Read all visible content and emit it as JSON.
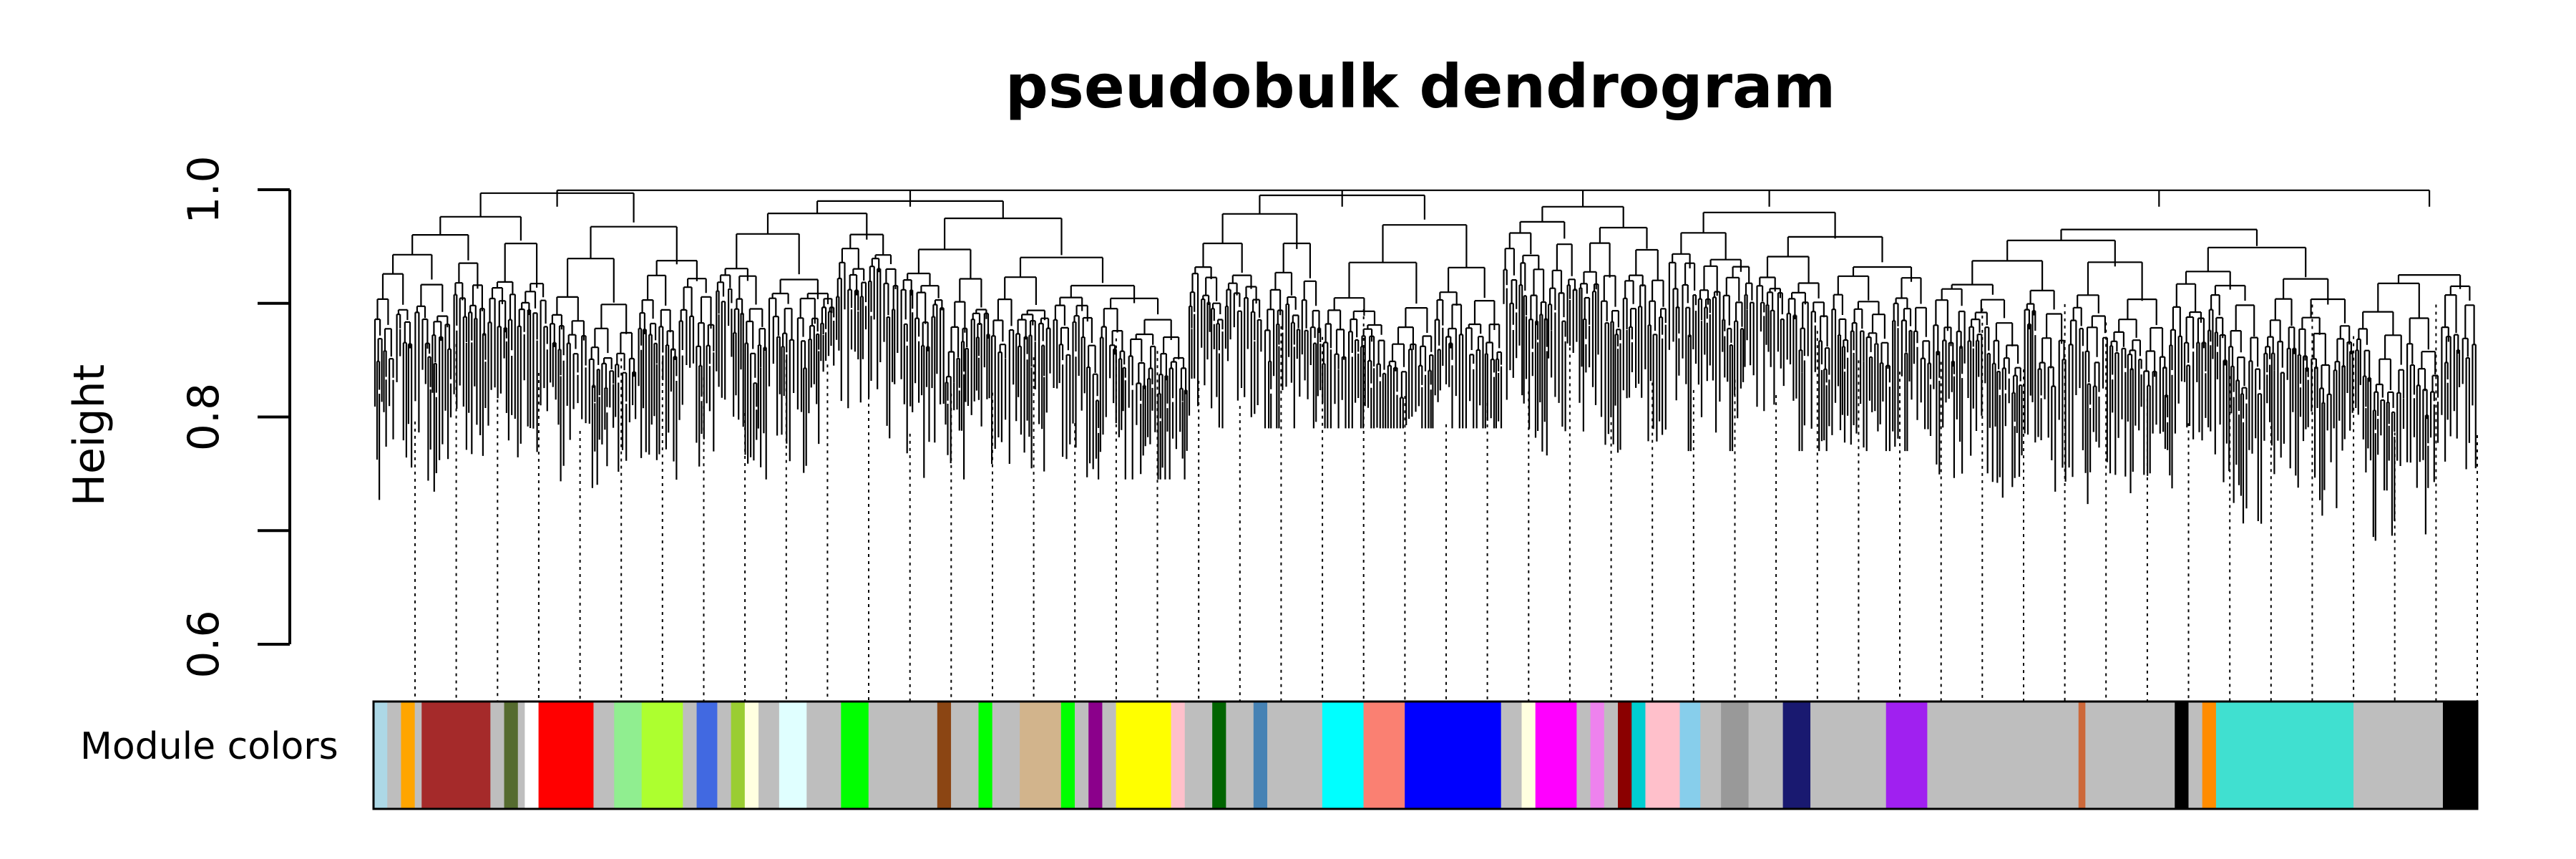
{
  "chart_data": {
    "type": "dendrogram",
    "title": "pseudobulk dendrogram",
    "ylabel": "Height",
    "xlabel": "",
    "ylim": [
      0.6,
      1.0
    ],
    "yticks": [
      0.6,
      0.7,
      0.8,
      0.9,
      1.0
    ],
    "ytick_labels": [
      "0.6",
      "",
      "0.8",
      "",
      "1.0"
    ],
    "color_track_label": "Module colors",
    "modules": [
      {
        "color": "#add8e6",
        "size": 1.0
      },
      {
        "color": "#bebebe",
        "size": 1.0
      },
      {
        "color": "#ffa500",
        "size": 1.0
      },
      {
        "color": "#bebebe",
        "size": 0.5
      },
      {
        "color": "#a52a2a",
        "size": 5.0
      },
      {
        "color": "#bebebe",
        "size": 1.0
      },
      {
        "color": "#556b2f",
        "size": 1.0
      },
      {
        "color": "#bebebe",
        "size": 0.5
      },
      {
        "color": "#ffffff",
        "size": 1.0
      },
      {
        "color": "#ff0000",
        "size": 4.0
      },
      {
        "color": "#bebebe",
        "size": 1.5
      },
      {
        "color": "#90ee90",
        "size": 2.0
      },
      {
        "color": "#adff2f",
        "size": 3.0
      },
      {
        "color": "#bebebe",
        "size": 1.0
      },
      {
        "color": "#4169e1",
        "size": 1.5
      },
      {
        "color": "#bebebe",
        "size": 1.0
      },
      {
        "color": "#9acd32",
        "size": 1.0
      },
      {
        "color": "#ffffe0",
        "size": 1.0
      },
      {
        "color": "#bebebe",
        "size": 1.5
      },
      {
        "color": "#e0ffff",
        "size": 2.0
      },
      {
        "color": "#bebebe",
        "size": 2.5
      },
      {
        "color": "#00ff00",
        "size": 2.0
      },
      {
        "color": "#bebebe",
        "size": 5.0
      },
      {
        "color": "#8b4513",
        "size": 1.0
      },
      {
        "color": "#bebebe",
        "size": 2.0
      },
      {
        "color": "#00ff00",
        "size": 1.0
      },
      {
        "color": "#bebebe",
        "size": 2.0
      },
      {
        "color": "#d2b48c",
        "size": 3.0
      },
      {
        "color": "#00ff00",
        "size": 1.0
      },
      {
        "color": "#bebebe",
        "size": 1.0
      },
      {
        "color": "#8b008b",
        "size": 1.0
      },
      {
        "color": "#bebebe",
        "size": 1.0
      },
      {
        "color": "#ffff00",
        "size": 4.0
      },
      {
        "color": "#ffc0cb",
        "size": 1.0
      },
      {
        "color": "#bebebe",
        "size": 2.0
      },
      {
        "color": "#006400",
        "size": 1.0
      },
      {
        "color": "#bebebe",
        "size": 2.0
      },
      {
        "color": "#4682b4",
        "size": 1.0
      },
      {
        "color": "#bebebe",
        "size": 4.0
      },
      {
        "color": "#00ffff",
        "size": 3.0
      },
      {
        "color": "#fa8072",
        "size": 3.0
      },
      {
        "color": "#0000ff",
        "size": 7.0
      },
      {
        "color": "#bebebe",
        "size": 1.5
      },
      {
        "color": "#ffffe0",
        "size": 1.0
      },
      {
        "color": "#ff00ff",
        "size": 3.0
      },
      {
        "color": "#bebebe",
        "size": 1.0
      },
      {
        "color": "#ee82ee",
        "size": 1.0
      },
      {
        "color": "#bebebe",
        "size": 1.0
      },
      {
        "color": "#8b0000",
        "size": 1.0
      },
      {
        "color": "#00ced1",
        "size": 1.0
      },
      {
        "color": "#ffc0cb",
        "size": 2.5
      },
      {
        "color": "#87ceeb",
        "size": 1.5
      },
      {
        "color": "#bebebe",
        "size": 1.5
      },
      {
        "color": "#999999",
        "size": 2.0
      },
      {
        "color": "#bebebe",
        "size": 2.5
      },
      {
        "color": "#191970",
        "size": 2.0
      },
      {
        "color": "#bebebe",
        "size": 5.5
      },
      {
        "color": "#a020f0",
        "size": 3.0
      },
      {
        "color": "#bebebe",
        "size": 11.0
      },
      {
        "color": "#cd6839",
        "size": 0.5
      },
      {
        "color": "#bebebe",
        "size": 6.5
      },
      {
        "color": "#000000",
        "size": 1.0
      },
      {
        "color": "#bebebe",
        "size": 1.0
      },
      {
        "color": "#ff8c00",
        "size": 1.0
      },
      {
        "color": "#40e0d0",
        "size": 10.0
      },
      {
        "color": "#bebebe",
        "size": 6.5
      },
      {
        "color": "#000000",
        "size": 2.5
      }
    ]
  }
}
